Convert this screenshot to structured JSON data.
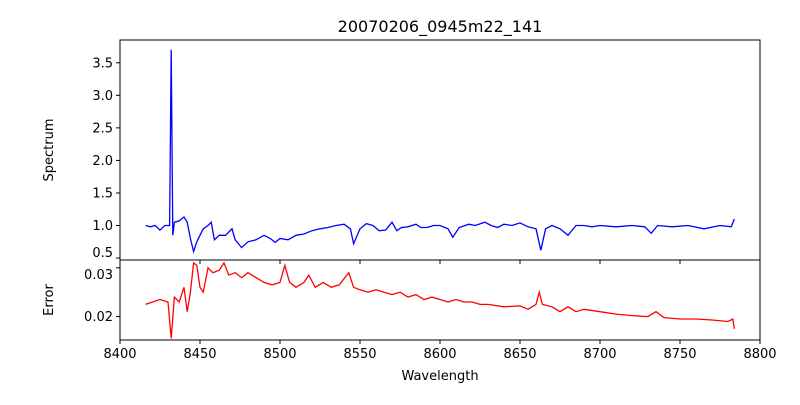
{
  "chart_data": [
    {
      "type": "line",
      "title": "20070206_0945m22_141",
      "xlabel": "",
      "ylabel": "Spectrum",
      "xlim": [
        8400,
        8800
      ],
      "ylim": [
        0.47,
        3.85
      ],
      "yticks": [
        0.5,
        1.0,
        1.5,
        2.0,
        2.5,
        3.0,
        3.5
      ],
      "ytick_labels": [
        "0.5",
        "1.0",
        "1.5",
        "2.0",
        "2.5",
        "3.0",
        "3.5"
      ],
      "color": "#0000ff",
      "x": [
        8416,
        8419,
        8422,
        8425,
        8428,
        8431,
        8432,
        8433,
        8434,
        8437,
        8440,
        8442,
        8444,
        8446,
        8448,
        8452,
        8455,
        8457,
        8459,
        8462,
        8466,
        8470,
        8472,
        8476,
        8480,
        8485,
        8490,
        8494,
        8497,
        8500,
        8505,
        8510,
        8515,
        8520,
        8525,
        8530,
        8535,
        8540,
        8544,
        8546,
        8550,
        8554,
        8558,
        8562,
        8566,
        8570,
        8573,
        8576,
        8580,
        8585,
        8588,
        8592,
        8596,
        8600,
        8605,
        8608,
        8612,
        8618,
        8622,
        8628,
        8632,
        8636,
        8640,
        8645,
        8650,
        8655,
        8660,
        8663,
        8666,
        8670,
        8675,
        8680,
        8685,
        8690,
        8695,
        8700,
        8710,
        8720,
        8728,
        8732,
        8736,
        8745,
        8755,
        8765,
        8775,
        8782,
        8784
      ],
      "y": [
        1.0,
        0.98,
        1.0,
        0.93,
        1.0,
        1.0,
        3.7,
        0.85,
        1.05,
        1.07,
        1.13,
        1.05,
        0.8,
        0.6,
        0.75,
        0.95,
        1.0,
        1.05,
        0.78,
        0.85,
        0.85,
        0.95,
        0.78,
        0.66,
        0.75,
        0.78,
        0.85,
        0.8,
        0.74,
        0.8,
        0.78,
        0.85,
        0.87,
        0.92,
        0.95,
        0.97,
        1.0,
        1.02,
        0.95,
        0.72,
        0.95,
        1.03,
        1.0,
        0.92,
        0.93,
        1.05,
        0.92,
        0.97,
        0.98,
        1.02,
        0.97,
        0.97,
        1.0,
        1.0,
        0.95,
        0.82,
        0.97,
        1.02,
        1.0,
        1.05,
        1.0,
        0.97,
        1.02,
        1.0,
        1.04,
        0.98,
        0.95,
        0.62,
        0.95,
        1.0,
        0.95,
        0.85,
        1.0,
        1.0,
        0.98,
        1.0,
        0.98,
        1.0,
        0.98,
        0.88,
        1.0,
        0.98,
        1.0,
        0.95,
        1.0,
        0.98,
        1.1
      ]
    },
    {
      "type": "line",
      "title": "",
      "xlabel": "Wavelength",
      "ylabel": "Error",
      "xlim": [
        8400,
        8800
      ],
      "ylim": [
        0.0152,
        0.0316
      ],
      "yticks": [
        0.02,
        0.03
      ],
      "ytick_labels": [
        "0.02",
        "0.03"
      ],
      "xticks": [
        8400,
        8450,
        8500,
        8550,
        8600,
        8650,
        8700,
        8750,
        8800
      ],
      "xtick_labels": [
        "8400",
        "8450",
        "8500",
        "8550",
        "8600",
        "8650",
        "8700",
        "8750",
        "8800"
      ],
      "color": "#ff0000",
      "x": [
        8416,
        8425,
        8430,
        8432,
        8434,
        8437,
        8440,
        8442,
        8444,
        8446,
        8448,
        8450,
        8452,
        8455,
        8458,
        8462,
        8465,
        8468,
        8472,
        8476,
        8480,
        8485,
        8490,
        8495,
        8500,
        8503,
        8506,
        8510,
        8515,
        8518,
        8522,
        8527,
        8532,
        8537,
        8543,
        8546,
        8550,
        8555,
        8560,
        8565,
        8570,
        8575,
        8580,
        8585,
        8590,
        8595,
        8600,
        8605,
        8610,
        8615,
        8620,
        8625,
        8630,
        8640,
        8650,
        8655,
        8660,
        8662,
        8664,
        8670,
        8675,
        8680,
        8685,
        8690,
        8700,
        8710,
        8720,
        8730,
        8735,
        8740,
        8750,
        8760,
        8770,
        8780,
        8783,
        8784
      ],
      "y": [
        0.0225,
        0.0235,
        0.023,
        0.0155,
        0.024,
        0.023,
        0.026,
        0.021,
        0.025,
        0.031,
        0.0305,
        0.026,
        0.025,
        0.03,
        0.029,
        0.0295,
        0.031,
        0.0285,
        0.029,
        0.028,
        0.029,
        0.028,
        0.027,
        0.0265,
        0.027,
        0.0305,
        0.027,
        0.026,
        0.027,
        0.0285,
        0.026,
        0.027,
        0.026,
        0.0265,
        0.029,
        0.026,
        0.0255,
        0.025,
        0.0255,
        0.025,
        0.0245,
        0.025,
        0.024,
        0.0245,
        0.0235,
        0.024,
        0.0235,
        0.023,
        0.0235,
        0.023,
        0.023,
        0.0225,
        0.0225,
        0.022,
        0.0222,
        0.0215,
        0.0225,
        0.025,
        0.0225,
        0.022,
        0.021,
        0.022,
        0.021,
        0.0215,
        0.021,
        0.0205,
        0.0202,
        0.02,
        0.021,
        0.0198,
        0.0195,
        0.0195,
        0.0193,
        0.019,
        0.0195,
        0.0175
      ]
    }
  ]
}
